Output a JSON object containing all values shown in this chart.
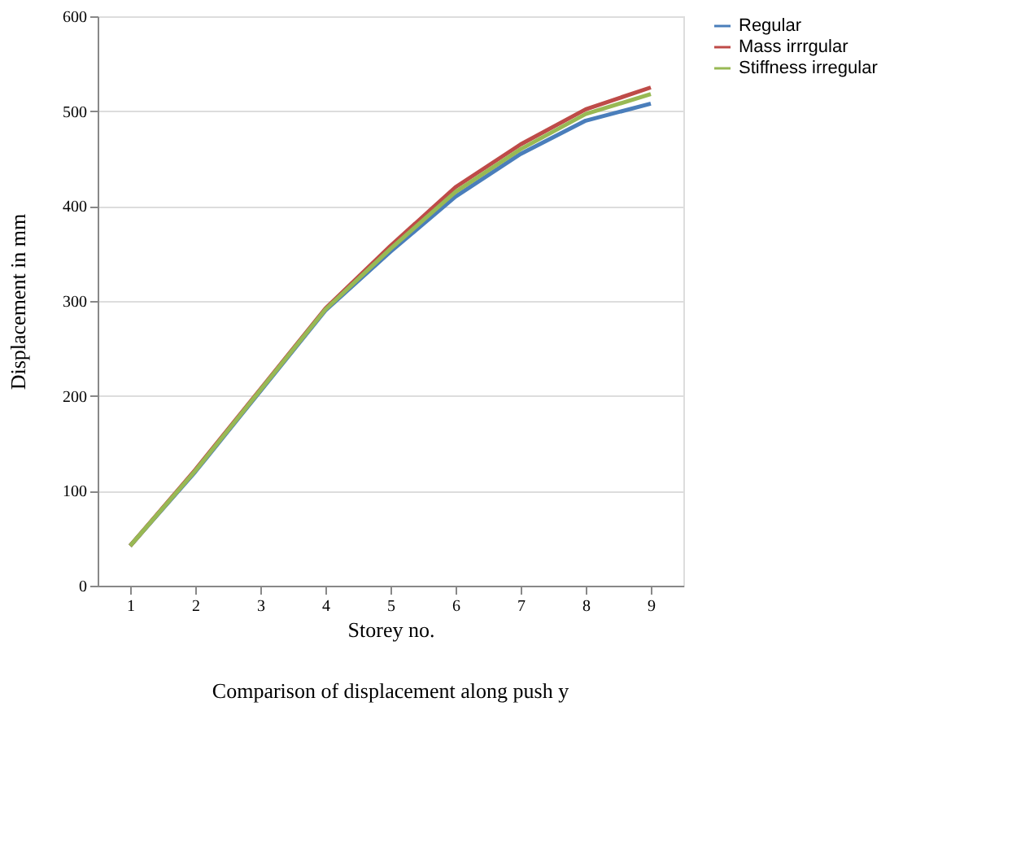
{
  "chart_data": {
    "type": "line",
    "title": "Comparison of displacement along push y",
    "xlabel": "Storey no.",
    "ylabel": "Displacement in mm",
    "categories": [
      "1",
      "2",
      "3",
      "4",
      "5",
      "6",
      "7",
      "8",
      "9"
    ],
    "series": [
      {
        "name": "Regular",
        "color": "#4a7ebb",
        "values": [
          42,
          120,
          205,
          290,
          352,
          410,
          455,
          490,
          508
        ]
      },
      {
        "name": "Mass irrrgular",
        "color": "#be4b48",
        "values": [
          42,
          122,
          207,
          292,
          358,
          420,
          465,
          502,
          525
        ]
      },
      {
        "name": "Stiffness irregular",
        "color": "#98b954",
        "values": [
          42,
          121,
          206,
          291,
          355,
          415,
          460,
          497,
          518
        ]
      }
    ],
    "ylim": [
      0,
      600
    ],
    "yticks": [
      0,
      100,
      200,
      300,
      400,
      500,
      600
    ],
    "grid": "y",
    "legend": "right",
    "marker": "none",
    "line_style": "solid"
  }
}
